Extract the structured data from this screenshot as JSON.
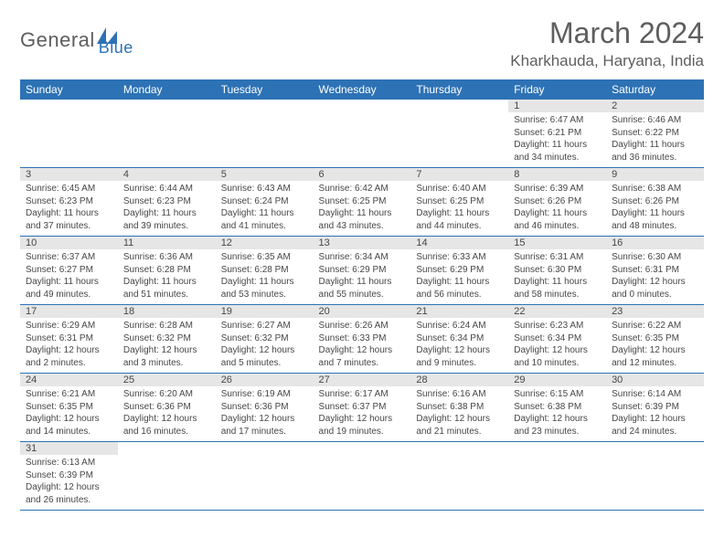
{
  "logo": {
    "text1": "General",
    "text2": "Blue"
  },
  "title": "March 2024",
  "location": "Kharkhauda, Haryana, India",
  "colors": {
    "header_bg": "#2d72b5",
    "header_fg": "#ffffff",
    "daynum_bg": "#e6e6e6",
    "text": "#474747",
    "rule": "#2d72b5",
    "logo_gray": "#5e5e5e",
    "logo_blue": "#2d72b5"
  },
  "weekdays": [
    "Sunday",
    "Monday",
    "Tuesday",
    "Wednesday",
    "Thursday",
    "Friday",
    "Saturday"
  ],
  "first_weekday_index": 5,
  "days": [
    {
      "n": 1,
      "sunrise": "6:47 AM",
      "sunset": "6:21 PM",
      "daylight": "11 hours and 34 minutes."
    },
    {
      "n": 2,
      "sunrise": "6:46 AM",
      "sunset": "6:22 PM",
      "daylight": "11 hours and 36 minutes."
    },
    {
      "n": 3,
      "sunrise": "6:45 AM",
      "sunset": "6:23 PM",
      "daylight": "11 hours and 37 minutes."
    },
    {
      "n": 4,
      "sunrise": "6:44 AM",
      "sunset": "6:23 PM",
      "daylight": "11 hours and 39 minutes."
    },
    {
      "n": 5,
      "sunrise": "6:43 AM",
      "sunset": "6:24 PM",
      "daylight": "11 hours and 41 minutes."
    },
    {
      "n": 6,
      "sunrise": "6:42 AM",
      "sunset": "6:25 PM",
      "daylight": "11 hours and 43 minutes."
    },
    {
      "n": 7,
      "sunrise": "6:40 AM",
      "sunset": "6:25 PM",
      "daylight": "11 hours and 44 minutes."
    },
    {
      "n": 8,
      "sunrise": "6:39 AM",
      "sunset": "6:26 PM",
      "daylight": "11 hours and 46 minutes."
    },
    {
      "n": 9,
      "sunrise": "6:38 AM",
      "sunset": "6:26 PM",
      "daylight": "11 hours and 48 minutes."
    },
    {
      "n": 10,
      "sunrise": "6:37 AM",
      "sunset": "6:27 PM",
      "daylight": "11 hours and 49 minutes."
    },
    {
      "n": 11,
      "sunrise": "6:36 AM",
      "sunset": "6:28 PM",
      "daylight": "11 hours and 51 minutes."
    },
    {
      "n": 12,
      "sunrise": "6:35 AM",
      "sunset": "6:28 PM",
      "daylight": "11 hours and 53 minutes."
    },
    {
      "n": 13,
      "sunrise": "6:34 AM",
      "sunset": "6:29 PM",
      "daylight": "11 hours and 55 minutes."
    },
    {
      "n": 14,
      "sunrise": "6:33 AM",
      "sunset": "6:29 PM",
      "daylight": "11 hours and 56 minutes."
    },
    {
      "n": 15,
      "sunrise": "6:31 AM",
      "sunset": "6:30 PM",
      "daylight": "11 hours and 58 minutes."
    },
    {
      "n": 16,
      "sunrise": "6:30 AM",
      "sunset": "6:31 PM",
      "daylight": "12 hours and 0 minutes."
    },
    {
      "n": 17,
      "sunrise": "6:29 AM",
      "sunset": "6:31 PM",
      "daylight": "12 hours and 2 minutes."
    },
    {
      "n": 18,
      "sunrise": "6:28 AM",
      "sunset": "6:32 PM",
      "daylight": "12 hours and 3 minutes."
    },
    {
      "n": 19,
      "sunrise": "6:27 AM",
      "sunset": "6:32 PM",
      "daylight": "12 hours and 5 minutes."
    },
    {
      "n": 20,
      "sunrise": "6:26 AM",
      "sunset": "6:33 PM",
      "daylight": "12 hours and 7 minutes."
    },
    {
      "n": 21,
      "sunrise": "6:24 AM",
      "sunset": "6:34 PM",
      "daylight": "12 hours and 9 minutes."
    },
    {
      "n": 22,
      "sunrise": "6:23 AM",
      "sunset": "6:34 PM",
      "daylight": "12 hours and 10 minutes."
    },
    {
      "n": 23,
      "sunrise": "6:22 AM",
      "sunset": "6:35 PM",
      "daylight": "12 hours and 12 minutes."
    },
    {
      "n": 24,
      "sunrise": "6:21 AM",
      "sunset": "6:35 PM",
      "daylight": "12 hours and 14 minutes."
    },
    {
      "n": 25,
      "sunrise": "6:20 AM",
      "sunset": "6:36 PM",
      "daylight": "12 hours and 16 minutes."
    },
    {
      "n": 26,
      "sunrise": "6:19 AM",
      "sunset": "6:36 PM",
      "daylight": "12 hours and 17 minutes."
    },
    {
      "n": 27,
      "sunrise": "6:17 AM",
      "sunset": "6:37 PM",
      "daylight": "12 hours and 19 minutes."
    },
    {
      "n": 28,
      "sunrise": "6:16 AM",
      "sunset": "6:38 PM",
      "daylight": "12 hours and 21 minutes."
    },
    {
      "n": 29,
      "sunrise": "6:15 AM",
      "sunset": "6:38 PM",
      "daylight": "12 hours and 23 minutes."
    },
    {
      "n": 30,
      "sunrise": "6:14 AM",
      "sunset": "6:39 PM",
      "daylight": "12 hours and 24 minutes."
    },
    {
      "n": 31,
      "sunrise": "6:13 AM",
      "sunset": "6:39 PM",
      "daylight": "12 hours and 26 minutes."
    }
  ]
}
